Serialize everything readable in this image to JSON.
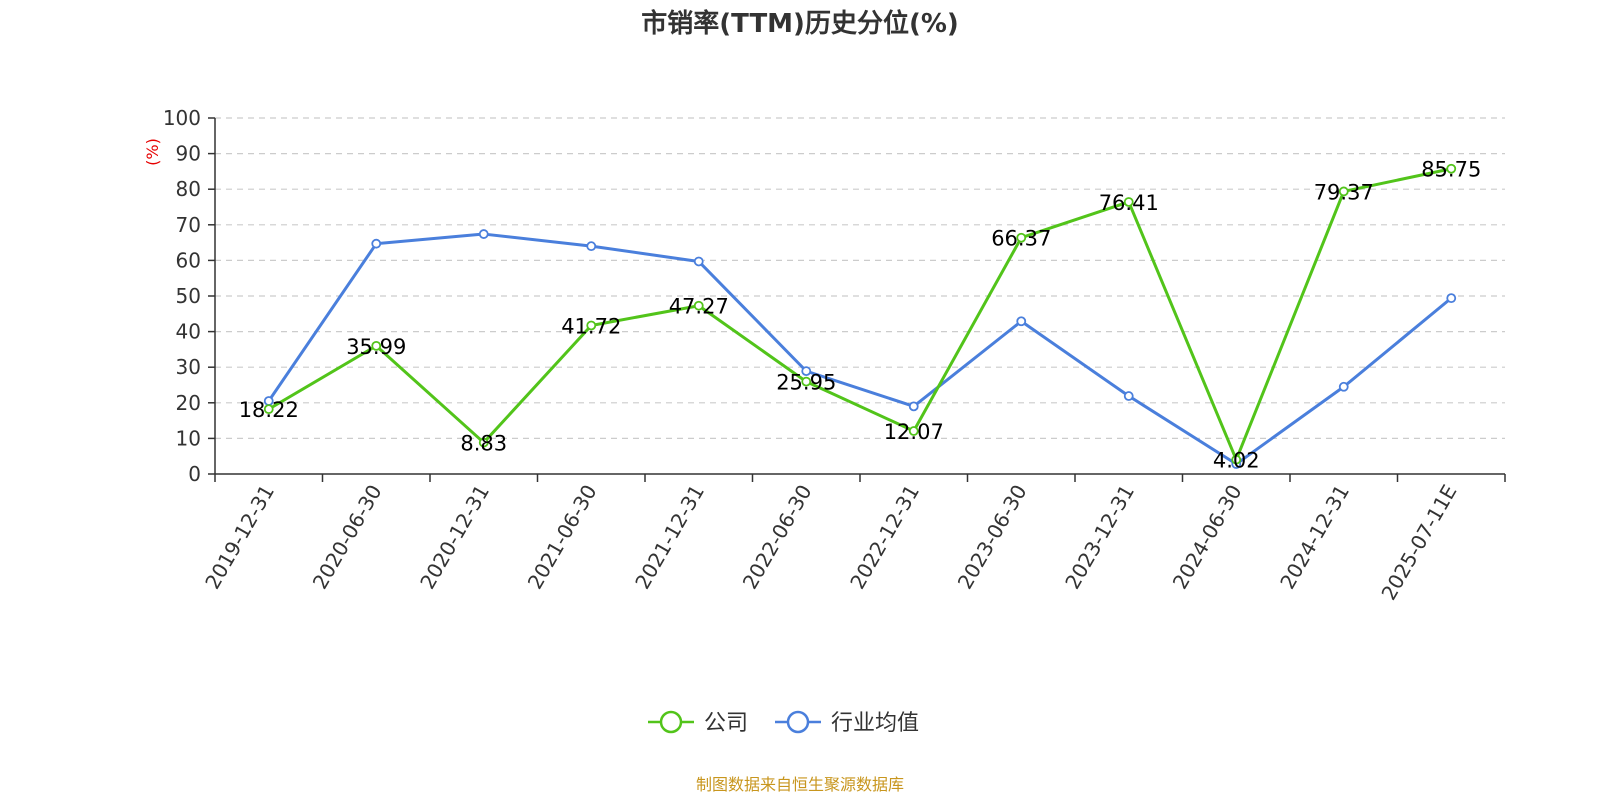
{
  "chart_data": {
    "type": "line",
    "title": "市销率(TTM)历史分位(%)",
    "ylabel": "(%)",
    "ylim": [
      0,
      100
    ],
    "yticks": [
      0,
      10,
      20,
      30,
      40,
      50,
      60,
      70,
      80,
      90,
      100
    ],
    "grid": true,
    "legend_position": "bottom-center",
    "categories": [
      "2019-12-31",
      "2020-06-30",
      "2020-12-31",
      "2021-06-30",
      "2021-12-31",
      "2022-06-30",
      "2022-12-31",
      "2023-06-30",
      "2023-12-31",
      "2024-06-30",
      "2024-12-31",
      "2025-07-11E"
    ],
    "series": [
      {
        "name": "公司",
        "color": "#52c41a",
        "values": [
          18.22,
          35.99,
          8.83,
          41.72,
          47.27,
          25.95,
          12.07,
          66.37,
          76.41,
          4.02,
          79.37,
          85.75
        ],
        "labels": [
          "18.22",
          "35.99",
          "8.83",
          "41.72",
          "47.27",
          "25.95",
          "12.07",
          "66.37",
          "76.41",
          "4.02",
          "79.37",
          "85.75"
        ]
      },
      {
        "name": "行业均值",
        "color": "#4a7fdc",
        "values": [
          20.5,
          64.7,
          67.4,
          64.0,
          59.7,
          28.9,
          19.0,
          42.9,
          21.9,
          2.8,
          24.5,
          49.4
        ]
      }
    ],
    "source": "制图数据来自恒生聚源数据库"
  },
  "colors": {
    "title": "#333333",
    "axis": "#333333",
    "grid": "#cccccc",
    "unit": "#e60000",
    "source": "#c8961e"
  }
}
